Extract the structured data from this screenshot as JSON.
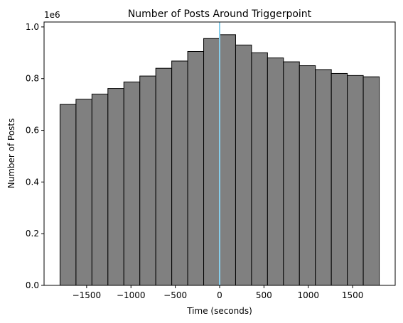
{
  "chart_data": {
    "type": "histogram",
    "title": "Number of Posts Around Triggerpoint",
    "x_label": "Time (seconds)",
    "y_label": "Number of Posts",
    "y_offset_label": "1e6",
    "bins": [
      -1800,
      -1620,
      -1440,
      -1260,
      -1080,
      -900,
      -720,
      -540,
      -360,
      -180,
      0,
      180,
      360,
      540,
      720,
      900,
      1080,
      1260,
      1440,
      1620,
      1800
    ],
    "values": [
      0.7,
      0.72,
      0.74,
      0.762,
      0.787,
      0.81,
      0.84,
      0.868,
      0.905,
      0.955,
      0.97,
      0.93,
      0.9,
      0.88,
      0.865,
      0.85,
      0.835,
      0.82,
      0.812,
      0.807
    ],
    "color": "#808080",
    "edge_color": "#000000",
    "vline": {
      "x": 0,
      "color": "#87ceeb"
    },
    "xlim": [
      -1980,
      1980
    ],
    "ylim": [
      0,
      1.019
    ],
    "xticks": [
      {
        "value": -1500,
        "label": "−1500"
      },
      {
        "value": -1000,
        "label": "−1000"
      },
      {
        "value": -500,
        "label": "−500"
      },
      0,
      500,
      1000,
      1500
    ],
    "yticks": [
      {
        "value": 0,
        "label": "0.0"
      },
      0.2,
      0.4,
      0.6,
      0.8,
      {
        "value": 1,
        "label": "1.0"
      }
    ],
    "grid": false
  }
}
